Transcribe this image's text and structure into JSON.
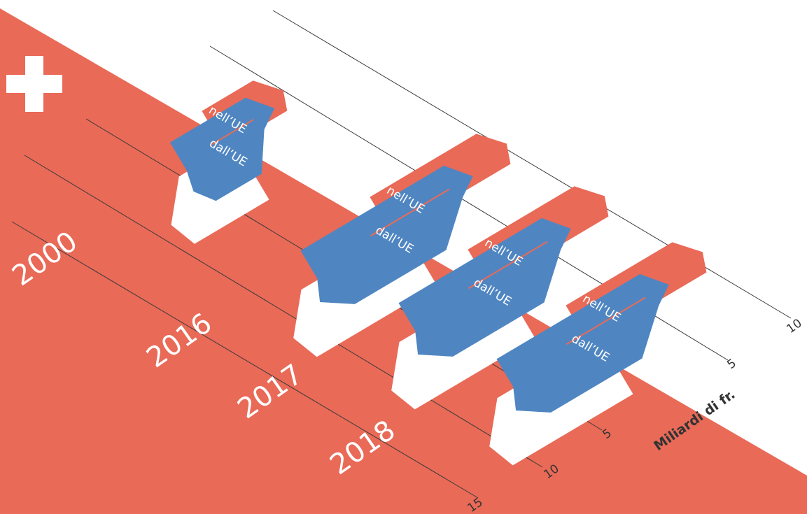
{
  "colors": {
    "background": "#ffffff",
    "swiss_red": "#e96a57",
    "eu_blue": "#4f86c2",
    "white": "#ffffff",
    "line": "#3a3a3a"
  },
  "icons": {
    "flag": "swiss-cross-icon"
  },
  "chart_data": {
    "type": "bar",
    "style": "isometric paired bars",
    "categories": [
      "2000",
      "2016",
      "2017",
      "2018"
    ],
    "series": [
      {
        "name": "nell'UE",
        "values": [
          2.5,
          4.5,
          4.5,
          4.5
        ],
        "color": "#e96a57"
      },
      {
        "name": "dall'UE",
        "values": [
          3.0,
          6.0,
          6.0,
          6.0
        ],
        "color": "#4f86c2"
      }
    ],
    "bar_labels": {
      "top": "nell’UE",
      "bottom": "dall’UE"
    },
    "axis_label": "Miliardi di fr.",
    "axes": [
      {
        "ticks": [
          "5",
          "10",
          "15"
        ]
      },
      {
        "ticks": [
          "5",
          "10"
        ]
      }
    ]
  }
}
